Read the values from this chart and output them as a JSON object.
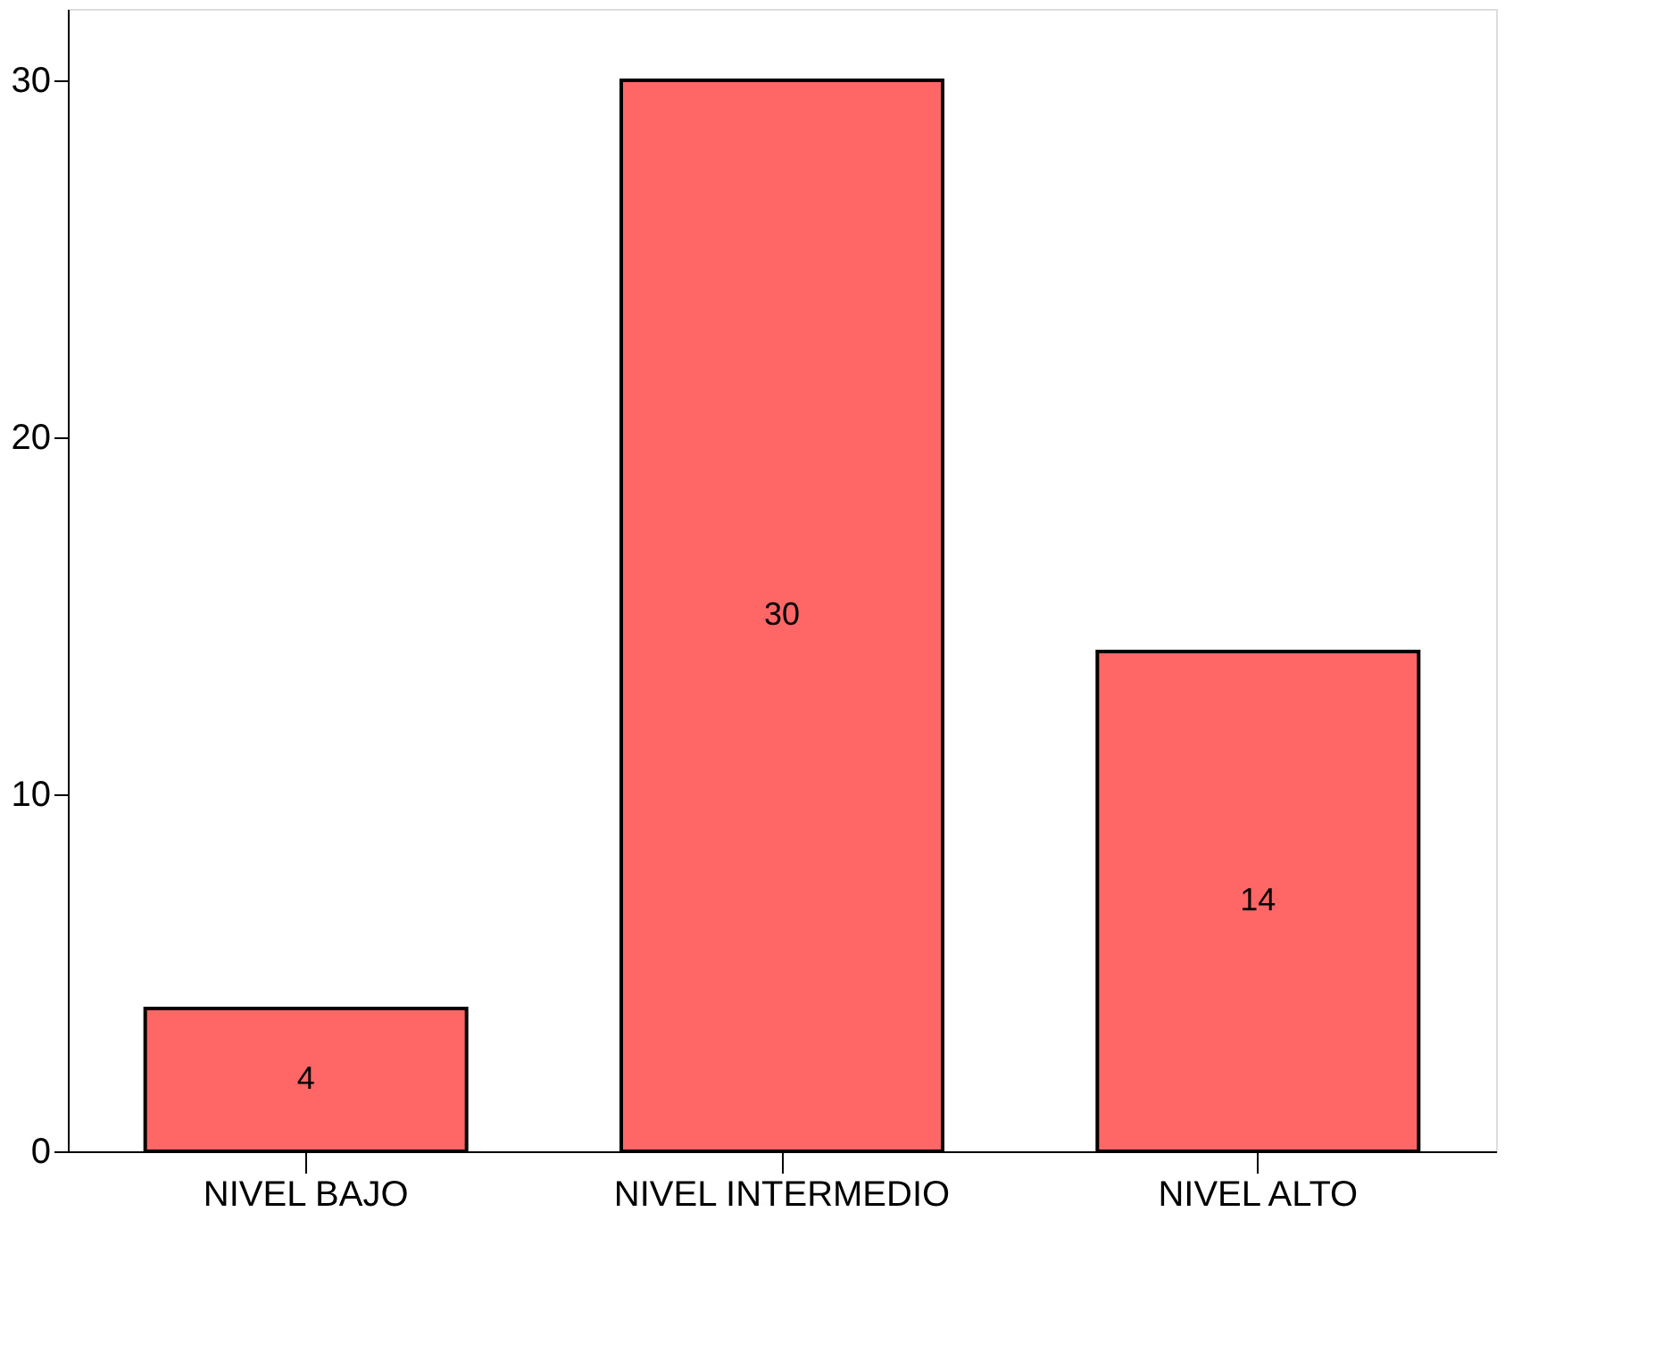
{
  "chart_data": {
    "type": "bar",
    "categories": [
      "NIVEL BAJO",
      "NIVEL INTERMEDIO",
      "NIVEL ALTO"
    ],
    "values": [
      4,
      30,
      14
    ],
    "color": "#ff6666",
    "ylim": [
      0,
      32
    ],
    "yticks": [
      0,
      10,
      20,
      30
    ],
    "grid": false,
    "data_labels": true
  }
}
